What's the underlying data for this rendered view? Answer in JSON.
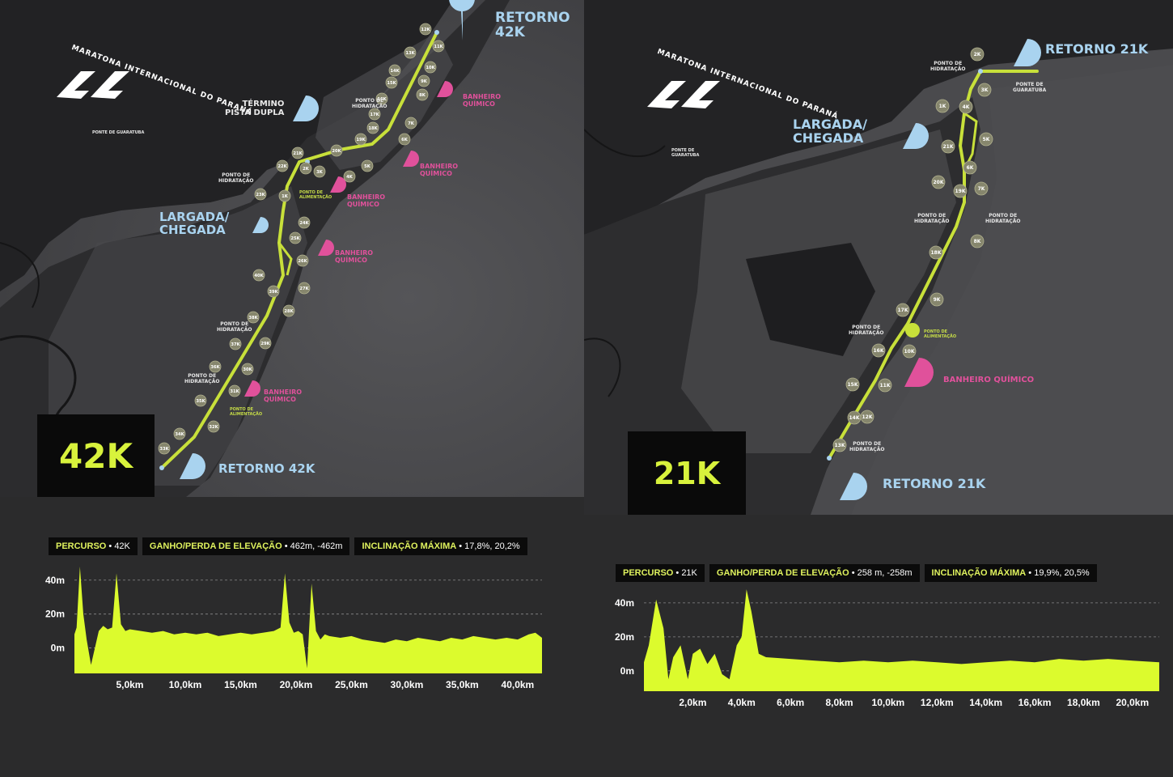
{
  "left": {
    "logo_text": "MARATONA INTERNACIONAL DO PARANÁ",
    "logo_subtext": "PONTE DE\nGUARATUBA",
    "distance_label": "42K",
    "labels": {
      "retorno_top": "RETORNO\n42K",
      "termino": "TÉRMINO\nPISTA DUPLA",
      "largada": "LARGADA/\nCHEGADA",
      "retorno_bottom": "RETORNO 42K"
    },
    "small_labels": {
      "hidratacao": "PONTO DE\nHIDRATAÇÃO",
      "alimentacao": "PONTO DE\nALIMENTAÇÃO",
      "banheiro": "BANHEIRO\nQUÍMICO"
    },
    "markers": [
      "1K",
      "2K",
      "3K",
      "4K",
      "5K",
      "6K",
      "7K",
      "8K",
      "9K",
      "10K",
      "11K",
      "12K",
      "13K",
      "14K",
      "15K",
      "16K",
      "17K",
      "18K",
      "19K",
      "20K",
      "21K",
      "22K",
      "23K",
      "24K",
      "25K",
      "26K",
      "27K",
      "28K",
      "29K",
      "30K",
      "31K",
      "32K",
      "33K",
      "34K",
      "35K",
      "36K",
      "37K",
      "38K",
      "39K",
      "40K"
    ],
    "stats": {
      "percurso_k": "PERCURSO",
      "percurso_v": "42K",
      "ganho_k": "GANHO/PERDA DE ELEVAÇÃO",
      "ganho_v": "462m, -462m",
      "incl_k": "INCLINAÇÃO MÁXIMA",
      "incl_v": "17,8%, 20,2%"
    }
  },
  "right": {
    "logo_text": "MARATONA INTERNACIONAL DO PARANÁ",
    "logo_subtext": "PONTE DE\nGUARATUBA",
    "distance_label": "21K",
    "labels": {
      "retorno_top": "RETORNO 21K",
      "largada": "LARGADA/\nCHEGADA",
      "retorno_bottom": "RETORNO 21K",
      "banheiro": "BANHEIRO QUÍMICO"
    },
    "small_labels": {
      "hidratacao": "PONTO DE\nHIDRATAÇÃO",
      "alimentacao": "PONTO DE\nALIMENTAÇÃO",
      "ponte": "PONTE DE\nGUARATUBA"
    },
    "markers": [
      "1K",
      "2K",
      "3K",
      "4K",
      "5K",
      "6K",
      "7K",
      "8K",
      "9K",
      "10K",
      "11K",
      "12K",
      "13K",
      "14K",
      "15K",
      "16K",
      "17K",
      "18K",
      "19K",
      "20K",
      "21K"
    ],
    "stats": {
      "percurso_k": "PERCURSO",
      "percurso_v": "21K",
      "ganho_k": "GANHO/PERDA DE ELEVAÇÃO",
      "ganho_v": "258 m, -258m",
      "incl_k": "INCLINAÇÃO MÁXIMA",
      "incl_v": "19,9%, 20,5%"
    }
  },
  "chart_data": [
    {
      "type": "area",
      "y_tick_labels": [
        "40m",
        "20m",
        "0m"
      ],
      "x_tick_labels": [
        "5,0km",
        "10,0km",
        "15,0km",
        "20,0km",
        "25,0km",
        "30,0km",
        "35,0km",
        "40,0km"
      ],
      "x_ticks": [
        5,
        10,
        15,
        20,
        25,
        30,
        35,
        40
      ],
      "y_ticks": [
        40,
        20,
        0
      ],
      "xlim": [
        0,
        42.2
      ],
      "ylim": [
        -15,
        48
      ],
      "grid": "horizontal-dashed",
      "color": "#dcfb2d",
      "x": [
        0,
        0.2,
        0.5,
        0.8,
        1.1,
        1.5,
        2.2,
        2.6,
        3.0,
        3.4,
        3.8,
        4.2,
        4.6,
        5,
        6,
        7,
        8,
        9,
        10,
        11,
        12,
        13,
        14,
        15,
        16,
        17,
        18,
        18.6,
        19.0,
        19.4,
        19.8,
        20.2,
        20.6,
        21.0,
        21.4,
        21.8,
        22.2,
        22.6,
        23,
        24,
        25,
        26,
        27,
        28,
        29,
        30,
        31,
        32,
        33,
        34,
        35,
        36,
        37,
        38,
        39,
        40,
        41,
        41.6,
        42.2
      ],
      "y": [
        8,
        12,
        48,
        20,
        5,
        -10,
        10,
        13,
        11,
        12,
        44,
        14,
        10,
        11,
        10,
        9,
        10,
        8,
        9,
        8,
        9,
        7,
        8,
        9,
        8,
        9,
        10,
        12,
        44,
        15,
        9,
        10,
        8,
        -12,
        38,
        10,
        5,
        8,
        7,
        6,
        7,
        5,
        4,
        3,
        5,
        4,
        6,
        5,
        4,
        6,
        5,
        7,
        6,
        5,
        6,
        5,
        8,
        9,
        6
      ]
    },
    {
      "type": "area",
      "y_tick_labels": [
        "40m",
        "20m",
        "0m"
      ],
      "x_tick_labels": [
        "2,0km",
        "4,0km",
        "6,0km",
        "8,0km",
        "10,0km",
        "12,0km",
        "14,0km",
        "16,0km",
        "18,0km",
        "20,0km"
      ],
      "x_ticks": [
        2,
        4,
        6,
        8,
        10,
        12,
        14,
        16,
        18,
        20
      ],
      "y_ticks": [
        40,
        20,
        0
      ],
      "xlim": [
        0,
        21.1
      ],
      "ylim": [
        -12,
        49
      ],
      "grid": "horizontal-dashed",
      "color": "#dcfb2d",
      "x": [
        0,
        0.2,
        0.5,
        0.8,
        1.0,
        1.2,
        1.5,
        1.8,
        2.0,
        2.3,
        2.6,
        2.9,
        3.2,
        3.5,
        3.8,
        4.0,
        4.2,
        4.4,
        4.7,
        5.0,
        6,
        7,
        8,
        9,
        10,
        11,
        12,
        13,
        14,
        15,
        16,
        17,
        18,
        19,
        20,
        21.1
      ],
      "y": [
        5,
        15,
        42,
        25,
        -5,
        8,
        15,
        -5,
        10,
        13,
        4,
        10,
        -2,
        -5,
        15,
        20,
        48,
        35,
        10,
        8,
        7,
        6,
        5,
        6,
        5,
        6,
        5,
        4,
        5,
        6,
        5,
        7,
        6,
        7,
        6,
        5
      ]
    }
  ]
}
